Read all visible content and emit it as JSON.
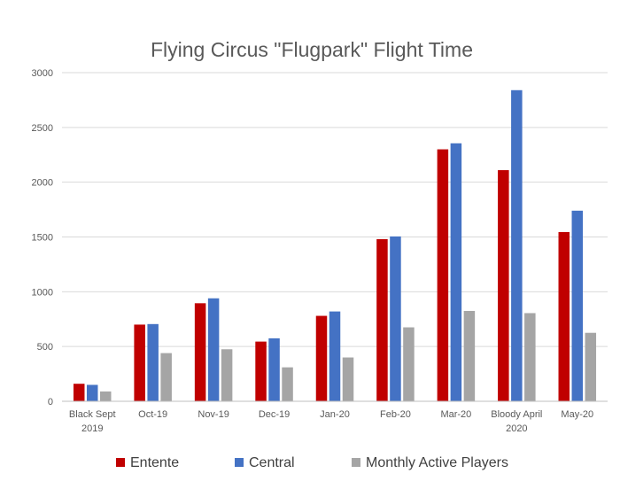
{
  "chart_data": {
    "type": "bar",
    "title": "Flying Circus \"Flugpark\" Flight Time",
    "xlabel": "",
    "ylabel": "",
    "ylim": [
      0,
      3000
    ],
    "yticks": [
      0,
      500,
      1000,
      1500,
      2000,
      2500,
      3000
    ],
    "grid": true,
    "legend_position": "bottom",
    "categories": [
      [
        "Black Sept",
        "2019"
      ],
      [
        "Oct-19"
      ],
      [
        "Nov-19"
      ],
      [
        "Dec-19"
      ],
      [
        "Jan-20"
      ],
      [
        "Feb-20"
      ],
      [
        "Mar-20"
      ],
      [
        "Bloody April",
        "2020"
      ],
      [
        "May-20"
      ]
    ],
    "series": [
      {
        "name": "Entente",
        "color": "#c00000",
        "values": [
          160,
          700,
          895,
          545,
          780,
          1480,
          2300,
          2110,
          1545
        ]
      },
      {
        "name": "Central",
        "color": "#4472c4",
        "values": [
          150,
          705,
          940,
          575,
          820,
          1505,
          2355,
          2840,
          1740
        ]
      },
      {
        "name": "Monthly Active Players",
        "color": "#a5a5a5",
        "values": [
          90,
          440,
          475,
          310,
          400,
          675,
          825,
          805,
          625
        ]
      }
    ]
  }
}
